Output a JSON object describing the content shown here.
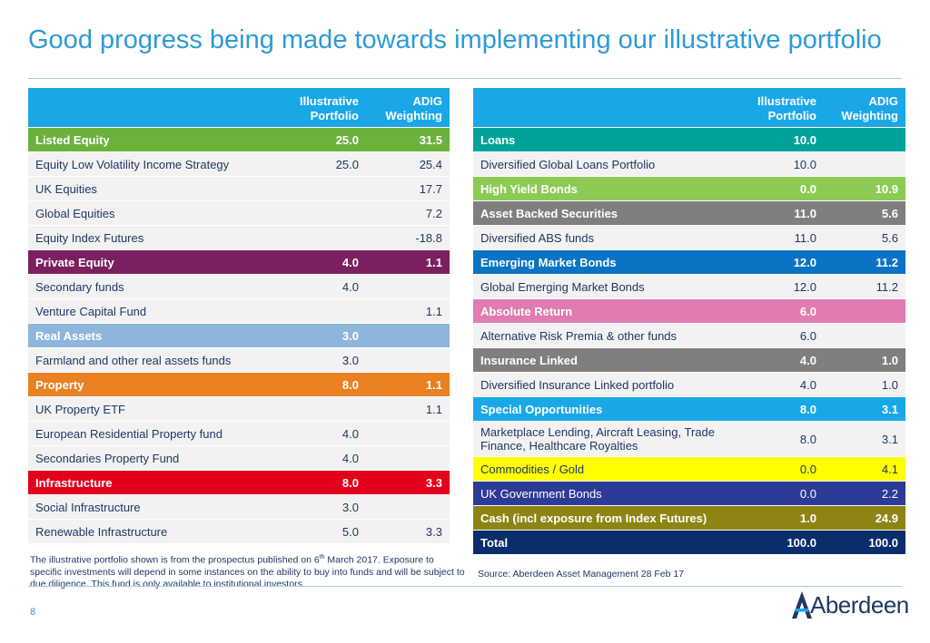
{
  "title": "Good progress being made towards implementing our illustrative portfolio",
  "headers": {
    "col1": "Illustrative Portfolio",
    "col2": "ADIG Weighting"
  },
  "left_rows": [
    {
      "label": "Listed Equity",
      "c1": "25.0",
      "c2": "31.5",
      "type": "sec",
      "color": "#6bb23d"
    },
    {
      "label": "Equity Low Volatility Income Strategy",
      "c1": "25.0",
      "c2": "25.4",
      "type": "item"
    },
    {
      "label": "UK Equities",
      "c1": "",
      "c2": "17.7",
      "type": "item"
    },
    {
      "label": "Global Equities",
      "c1": "",
      "c2": "7.2",
      "type": "item"
    },
    {
      "label": "Equity Index Futures",
      "c1": "",
      "c2": "-18.8",
      "type": "item"
    },
    {
      "label": "Private Equity",
      "c1": "4.0",
      "c2": "1.1",
      "type": "sec",
      "color": "#7a1f5f"
    },
    {
      "label": "Secondary funds",
      "c1": "4.0",
      "c2": "",
      "type": "item"
    },
    {
      "label": "Venture Capital Fund",
      "c1": "",
      "c2": "1.1",
      "type": "item"
    },
    {
      "label": "Real Assets",
      "c1": "3.0",
      "c2": "",
      "type": "sec",
      "color": "#8eb6dc"
    },
    {
      "label": "Farmland and other real assets funds",
      "c1": "3.0",
      "c2": "",
      "type": "item"
    },
    {
      "label": "Property",
      "c1": "8.0",
      "c2": "1.1",
      "type": "sec",
      "color": "#e98122"
    },
    {
      "label": "UK Property ETF",
      "c1": "",
      "c2": "1.1",
      "type": "item"
    },
    {
      "label": "European Residential Property fund",
      "c1": "4.0",
      "c2": "",
      "type": "item"
    },
    {
      "label": "Secondaries Property Fund",
      "c1": "4.0",
      "c2": "",
      "type": "item"
    },
    {
      "label": "Infrastructure",
      "c1": "8.0",
      "c2": "3.3",
      "type": "sec",
      "color": "#e3001b"
    },
    {
      "label": "Social Infrastructure",
      "c1": "3.0",
      "c2": "",
      "type": "item"
    },
    {
      "label": "Renewable Infrastructure",
      "c1": "5.0",
      "c2": "3.3",
      "type": "item"
    }
  ],
  "right_rows": [
    {
      "label": "Loans",
      "c1": "10.0",
      "c2": "",
      "type": "sec",
      "color": "#00a39b"
    },
    {
      "label": "Diversified Global Loans Portfolio",
      "c1": "10.0",
      "c2": "",
      "type": "item"
    },
    {
      "label": "High Yield Bonds",
      "c1": "0.0",
      "c2": "10.9",
      "type": "sec",
      "color": "#8ccb53"
    },
    {
      "label": "Asset Backed Securities",
      "c1": "11.0",
      "c2": "5.6",
      "type": "sec",
      "color": "#7f7f7f"
    },
    {
      "label": "Diversified ABS funds",
      "c1": "11.0",
      "c2": "5.6",
      "type": "item"
    },
    {
      "label": "Emerging Market Bonds",
      "c1": "12.0",
      "c2": "11.2",
      "type": "sec",
      "color": "#0b73c4"
    },
    {
      "label": "Global Emerging Market Bonds",
      "c1": "12.0",
      "c2": "11.2",
      "type": "item"
    },
    {
      "label": "Absolute Return",
      "c1": "6.0",
      "c2": "",
      "type": "sec",
      "color": "#e07cb0"
    },
    {
      "label": "Alternative Risk Premia & other funds",
      "c1": "6.0",
      "c2": "",
      "type": "item"
    },
    {
      "label": "Insurance Linked",
      "c1": "4.0",
      "c2": "1.0",
      "type": "sec",
      "color": "#7f7f7f"
    },
    {
      "label": "Diversified Insurance Linked portfolio",
      "c1": "4.0",
      "c2": "1.0",
      "type": "item"
    },
    {
      "label": "Special Opportunities",
      "c1": "8.0",
      "c2": "3.1",
      "type": "sec",
      "color": "#1aa7e8"
    },
    {
      "label": "Marketplace Lending, Aircraft Leasing, Trade Finance, Healthcare Royalties",
      "c1": "8.0",
      "c2": "3.1",
      "type": "item",
      "tall": true
    },
    {
      "label": "Commodities / Gold",
      "c1": "0.0",
      "c2": "4.1",
      "type": "sec",
      "color": "#ffff00",
      "text": "#1f3864",
      "weight": "normal"
    },
    {
      "label": "UK Government Bonds",
      "c1": "0.0",
      "c2": "2.2",
      "type": "sec",
      "color": "#2d3a96",
      "weight": "normal"
    },
    {
      "label": "Cash (incl exposure from Index Futures)",
      "c1": "1.0",
      "c2": "24.9",
      "type": "sec",
      "color": "#8d8414"
    },
    {
      "label": "Total",
      "c1": "100.0",
      "c2": "100.0",
      "type": "sec",
      "color": "#0b2d6b"
    }
  ],
  "footnote_pre": "The illustrative portfolio shown is from the prospectus published on 6",
  "footnote_sup": "th",
  "footnote_post": " March 2017.  Exposure to specific investments will depend in some instances on the ability to buy into funds and will be subject to due diligence.  This fund is only available to institutional investors.",
  "source": "Source: Aberdeen Asset Management   28 Feb 17",
  "page_number": "8",
  "logo_text": "Aberdeen",
  "logo_icon": "aberdeen-logo-mark"
}
